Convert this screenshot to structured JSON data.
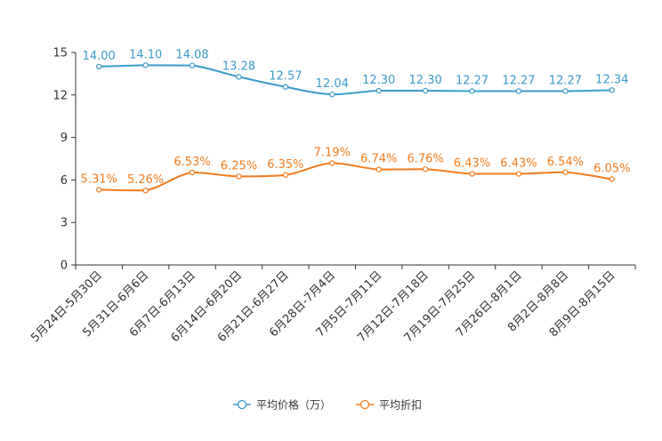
{
  "chart_data": {
    "type": "line",
    "categories": [
      "5月24日-5月30日",
      "5月31日-6月6日",
      "6月7日-6月13日",
      "6月14日-6月20日",
      "6月21日-6月27日",
      "6月28日-7月4日",
      "7月5日-7月11日",
      "7月12日-7月18日",
      "7月19日-7月25日",
      "7月26日-8月1日",
      "8月2日-8月8日",
      "8月9日-8月15日"
    ],
    "series": [
      {
        "name": "平均价格（万）",
        "color": "#3a9bc9",
        "values": [
          14.0,
          14.1,
          14.08,
          13.28,
          12.57,
          12.04,
          12.3,
          12.3,
          12.27,
          12.27,
          12.27,
          12.34
        ],
        "labels": [
          "14.00",
          "14.10",
          "14.08",
          "13.28",
          "12.57",
          "12.04",
          "12.30",
          "12.30",
          "12.27",
          "12.27",
          "12.27",
          "12.34"
        ]
      },
      {
        "name": "平均折扣",
        "color": "#f37b1d",
        "values": [
          5.31,
          5.26,
          6.53,
          6.25,
          6.35,
          7.19,
          6.74,
          6.76,
          6.43,
          6.43,
          6.54,
          6.05
        ],
        "labels": [
          "5.31%",
          "5.26%",
          "6.53%",
          "6.25%",
          "6.35%",
          "7.19%",
          "6.74%",
          "6.76%",
          "6.43%",
          "6.43%",
          "6.54%",
          "6.05%"
        ]
      }
    ],
    "yticks": [
      "0",
      "3",
      "6",
      "9",
      "12",
      "15"
    ],
    "ylim": [
      0,
      15
    ],
    "legend_position": "bottom-center",
    "title": "",
    "xlabel": "",
    "ylabel": ""
  }
}
